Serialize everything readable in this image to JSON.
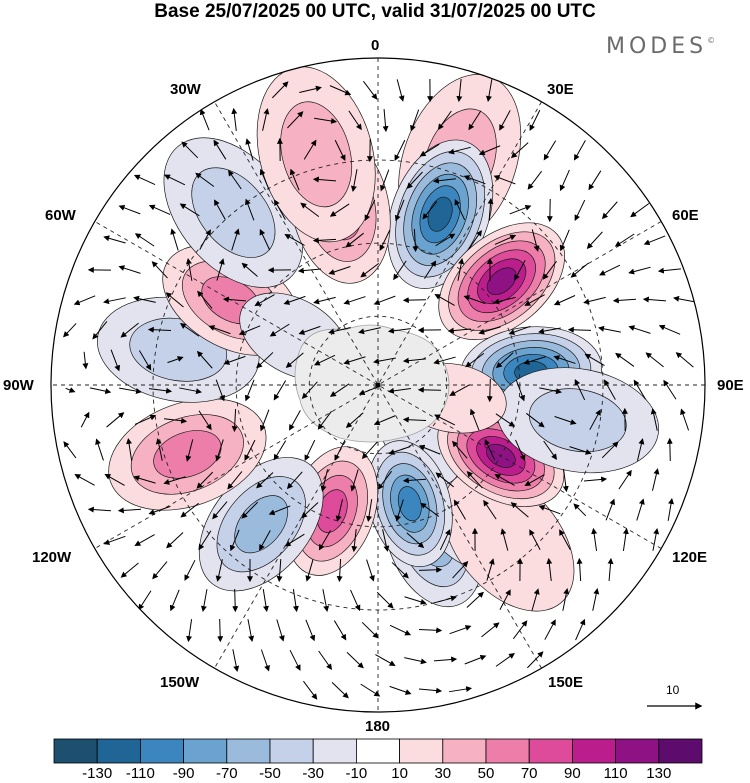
{
  "title": "Base 25/07/2025 00 UTC, valid 31/07/2025 00 UTC",
  "brand": {
    "name": "MODES",
    "mark": "©"
  },
  "map": {
    "projection": "south polar stereographic",
    "longitude_labels": {
      "top": "0",
      "bottom": "180",
      "left": "90W",
      "right": "90E",
      "top_left": "30W",
      "top_right": "30E",
      "upper_left": "60W",
      "upper_right": "60E",
      "lower_left": "120W",
      "lower_right": "120E",
      "bottom_left": "150W",
      "bottom_right": "150E"
    },
    "anomaly_centers": [
      {
        "sign": "negative",
        "lon": 160,
        "lat": -45,
        "value": -55
      },
      {
        "sign": "negative",
        "lon": 145,
        "lat": -48,
        "value": -30
      },
      {
        "sign": "negative",
        "lon": 142,
        "lat": -70,
        "value": -20
      },
      {
        "sign": "positive",
        "lon": 140,
        "lat": -35,
        "value": 10
      },
      {
        "sign": "positive",
        "lon": 20,
        "lat": -27,
        "value": 30
      },
      {
        "sign": "negative",
        "lon": 20,
        "lat": -40,
        "value": -110
      },
      {
        "sign": "positive",
        "lon": 50,
        "lat": -45,
        "value": 120
      },
      {
        "sign": "negative",
        "lon": 85,
        "lat": -47,
        "value": -120
      },
      {
        "sign": "positive",
        "lon": 120,
        "lat": -50,
        "value": 125
      },
      {
        "sign": "negative",
        "lon": 165,
        "lat": -55,
        "value": -100
      },
      {
        "sign": "positive",
        "lon": -160,
        "lat": -52,
        "value": 70
      },
      {
        "sign": "negative",
        "lon": -140,
        "lat": -40,
        "value": -50
      },
      {
        "sign": "positive",
        "lon": -110,
        "lat": -35,
        "value": 65
      },
      {
        "sign": "negative",
        "lon": -80,
        "lat": -35,
        "value": -45
      },
      {
        "sign": "positive",
        "lon": -60,
        "lat": -43,
        "value": 55
      },
      {
        "sign": "negative",
        "lon": -40,
        "lat": -30,
        "value": -40
      },
      {
        "sign": "positive",
        "lon": -12,
        "lat": -40,
        "value": 65
      },
      {
        "sign": "positive",
        "lon": -15,
        "lat": -27,
        "value": 40
      },
      {
        "sign": "negative",
        "lon": -60,
        "lat": -62,
        "value": -25
      },
      {
        "sign": "negative",
        "lon": 100,
        "lat": -35,
        "value": -30
      },
      {
        "sign": "positive",
        "lon": 100,
        "lat": -68,
        "value": 20
      }
    ]
  },
  "vector_scale": {
    "value": "10"
  },
  "colorbar": {
    "colors": [
      "#1d4f6f",
      "#1f6596",
      "#3c86bf",
      "#6aa3cf",
      "#9bbbdc",
      "#c5d1e8",
      "#e3e3f0",
      "#ffffff",
      "#fbdcdf",
      "#f6b2c2",
      "#ed7eaa",
      "#de4b9a",
      "#bb1e8c",
      "#8e1283",
      "#5d0c6e"
    ],
    "labels": [
      "-130",
      "-110",
      "-90",
      "-70",
      "-50",
      "-30",
      "-10",
      "10",
      "30",
      "50",
      "70",
      "90",
      "110",
      "130"
    ]
  }
}
